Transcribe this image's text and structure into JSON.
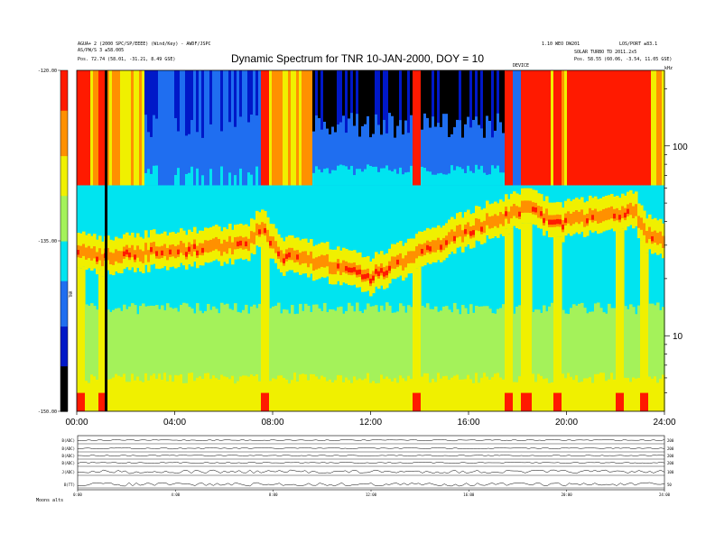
{
  "header": {
    "left_line1": "AGUA+ 2 (2000 SPC/SP/EEEE) (Wind/Key) - AWDF/JSPC",
    "left_line2": "AS/PW/S 3 ±58.005",
    "left_line3": "Pos. 72.74 (58.01, -31.21, 8.49 GSE)",
    "right_line1": "1.10 WEO DW201",
    "right_line2": "LOS/PORT ±83.1",
    "right_line3": "SOLAR TURBO  TD 2011.2x5",
    "right_line4": "Pos. 58.55 (60.06, -3.54, 11.05 GSE)",
    "device_label": "DEVICE",
    "unit_label": "kHz"
  },
  "chart_data": {
    "type": "heatmap",
    "title": "Dynamic Spectrum for TNR 10-JAN-2000, DOY = 10",
    "x_ticks": [
      "00:00",
      "04:00",
      "08:00",
      "12:00",
      "16:00",
      "20:00",
      "24:00"
    ],
    "x_range_hours": [
      0,
      24
    ],
    "y_scale": "log",
    "y_range_khz": [
      4,
      250
    ],
    "y_ticks": [
      "100",
      "10"
    ],
    "colorbar_ticks": [
      "-120.00",
      "-135.00",
      "-150.00"
    ],
    "colorbar_range_db": [
      -150,
      -120
    ],
    "colorbar_label": "TNR",
    "colors": [
      "#000000",
      "#0018c8",
      "#1f6ef0",
      "#00e4f0",
      "#a4f25a",
      "#f0f000",
      "#ff9000",
      "#ff1a00"
    ],
    "ridge_khz": [
      {
        "hour": 0,
        "khz": 28
      },
      {
        "hour": 1,
        "khz": 25
      },
      {
        "hour": 3,
        "khz": 27
      },
      {
        "hour": 5,
        "khz": 28
      },
      {
        "hour": 7,
        "khz": 30
      },
      {
        "hour": 7.6,
        "khz": 38
      },
      {
        "hour": 8.2,
        "khz": 26
      },
      {
        "hour": 10,
        "khz": 24
      },
      {
        "hour": 12,
        "khz": 20
      },
      {
        "hour": 13,
        "khz": 23
      },
      {
        "hour": 15,
        "khz": 31
      },
      {
        "hour": 17,
        "khz": 40
      },
      {
        "hour": 18.5,
        "khz": 46
      },
      {
        "hour": 19.5,
        "khz": 38
      },
      {
        "hour": 21,
        "khz": 42
      },
      {
        "hour": 22.8,
        "khz": 44
      },
      {
        "hour": 23.3,
        "khz": 33
      },
      {
        "hour": 24,
        "khz": 30
      }
    ],
    "bright_columns_hours": [
      0.15,
      1.05,
      7.7,
      13.9,
      17.6,
      18.35,
      19.6,
      22.2,
      23.2
    ],
    "data_gap_hour": 1.2,
    "lower_panels": {
      "rows": [
        "B(ADC)",
        "B(ADC)",
        "B(ADC)",
        "B(ADC)",
        "J(ADC)",
        "B(TT)"
      ],
      "right_ticks": [
        "200",
        "200",
        "200",
        "200",
        "100",
        "50"
      ],
      "x_ticks": [
        "0:00",
        "4:00",
        "8:00",
        "12:00",
        "16:00",
        "20:00",
        "24:00"
      ],
      "footer": "Moons  alts"
    }
  }
}
